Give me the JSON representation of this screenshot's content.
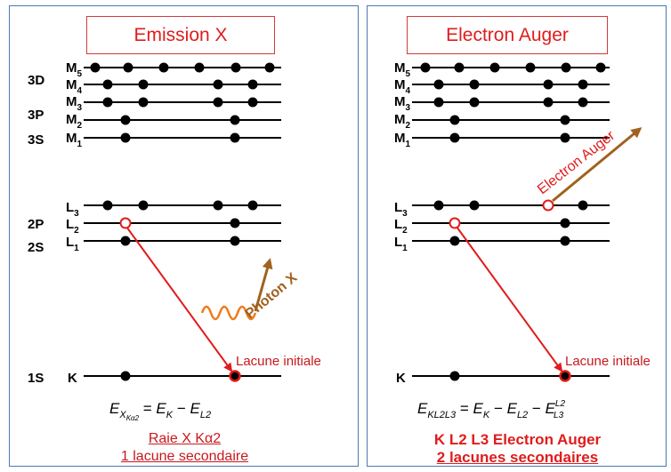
{
  "left_panel": {
    "title": "Emission X",
    "shell_labels": [
      "3D",
      "3P",
      "3S",
      "2P",
      "2S",
      "1S"
    ],
    "level_labels": [
      {
        "main": "M",
        "sub": "5"
      },
      {
        "main": "M",
        "sub": "4"
      },
      {
        "main": "M",
        "sub": "3"
      },
      {
        "main": "M",
        "sub": "2"
      },
      {
        "main": "M",
        "sub": "1"
      },
      {
        "main": "L",
        "sub": "3"
      },
      {
        "main": "L",
        "sub": "2"
      },
      {
        "main": "L",
        "sub": "1"
      },
      {
        "main": "K",
        "sub": ""
      }
    ],
    "photon_label": "Photon X",
    "vacancy_label": "Lacune initiale",
    "equation": {
      "lhs": "E",
      "lhs_sub": "X",
      "lhs_subsub": "Kα2",
      "t1": "E",
      "t1_sub": "K",
      "t2": "E",
      "t2_sub": "L2"
    },
    "caption_line1": "Raie X Kα2",
    "caption_line2": "1 lacune secondaire"
  },
  "right_panel": {
    "title": "Electron Auger",
    "level_labels": [
      {
        "main": "M",
        "sub": "5"
      },
      {
        "main": "M",
        "sub": "4"
      },
      {
        "main": "M",
        "sub": "3"
      },
      {
        "main": "M",
        "sub": "2"
      },
      {
        "main": "M",
        "sub": "1"
      },
      {
        "main": "L",
        "sub": "3"
      },
      {
        "main": "L",
        "sub": "2"
      },
      {
        "main": "L",
        "sub": "1"
      },
      {
        "main": "K",
        "sub": ""
      }
    ],
    "electron_label": "Electron Auger",
    "vacancy_label": "Lacune initiale",
    "equation": {
      "lhs": "E",
      "lhs_sub": "KL2L3",
      "t1": "E",
      "t1_sub": "K",
      "t2": "E",
      "t2_sub": "L2",
      "t3": "E",
      "t3_sub": "L3",
      "t3_sup": "L2"
    },
    "caption_line1": "K L2 L3  Electron Auger",
    "caption_line2": "2 lacunes secondaires"
  },
  "colors": {
    "border": "#4a7ab5",
    "red": "#e01c1c",
    "brown": "#a0621e",
    "photon_orange": "#f07a1a",
    "dark_red_text": "#c8181c"
  }
}
